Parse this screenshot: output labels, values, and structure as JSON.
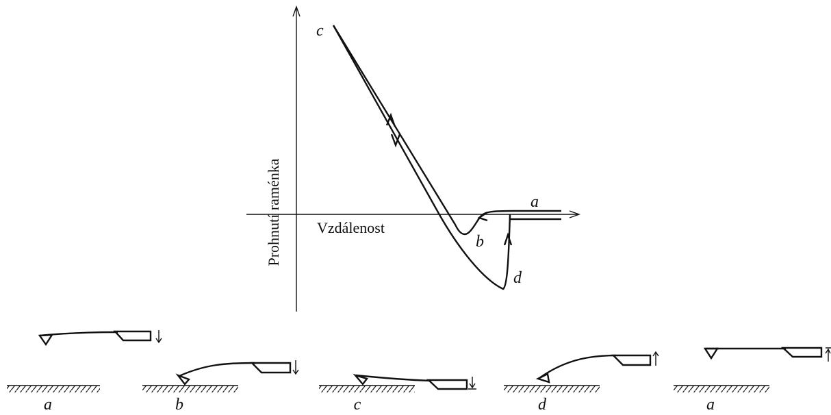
{
  "graph": {
    "y_axis_label": "Prohnutí raménka",
    "x_axis_label": "Vzdálenost",
    "point_labels": {
      "c": "c",
      "a": "a",
      "b": "b",
      "d": "d"
    }
  },
  "stages": [
    "a",
    "b",
    "c",
    "d",
    "a"
  ]
}
